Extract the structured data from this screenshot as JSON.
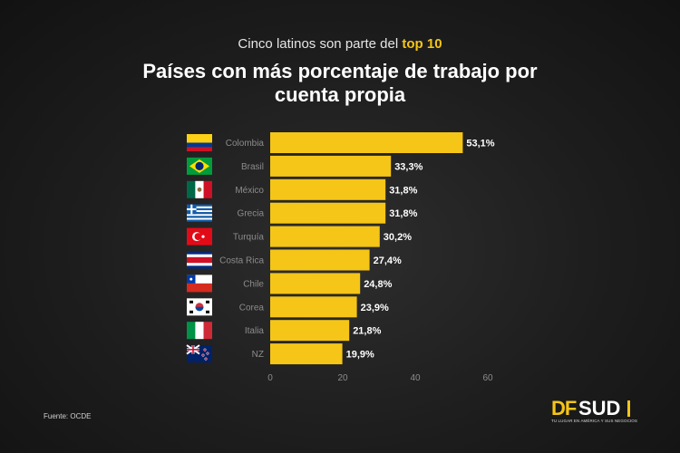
{
  "header": {
    "subtitle_prefix": "Cinco latinos son parte del",
    "subtitle_highlight": "top 10",
    "title": "Países con más porcentaje de trabajo por cuenta propia"
  },
  "colors": {
    "bar": "#f5c518",
    "accent": "#f5c518",
    "background": "#1d1d1d"
  },
  "chart_data": {
    "type": "bar",
    "orientation": "horizontal",
    "categories": [
      "Colombia",
      "Brasil",
      "México",
      "Grecia",
      "Turquía",
      "Costa Rica",
      "Chile",
      "Corea",
      "Italia",
      "NZ"
    ],
    "values": [
      53.1,
      33.3,
      31.8,
      31.8,
      30.2,
      27.4,
      24.8,
      23.9,
      21.8,
      19.9
    ],
    "value_labels": [
      "53,1%",
      "33,3%",
      "31,8%",
      "31,8%",
      "30,2%",
      "27,4%",
      "24,8%",
      "23,9%",
      "21,8%",
      "19,9%"
    ],
    "flags": [
      "colombia-flag-icon",
      "brazil-flag-icon",
      "mexico-flag-icon",
      "greece-flag-icon",
      "turkey-flag-icon",
      "costa-rica-flag-icon",
      "chile-flag-icon",
      "korea-flag-icon",
      "italy-flag-icon",
      "new-zealand-flag-icon"
    ],
    "xticks": [
      0,
      20,
      40,
      60
    ],
    "xlim": [
      0,
      60
    ],
    "grid": false
  },
  "footer": {
    "source": "Fuente: OCDE",
    "logo_df": "DF",
    "logo_sud": "SUD",
    "logo_tagline": "TU LUGAR EN AMÉRICA Y SUS NEGOCIOS"
  }
}
